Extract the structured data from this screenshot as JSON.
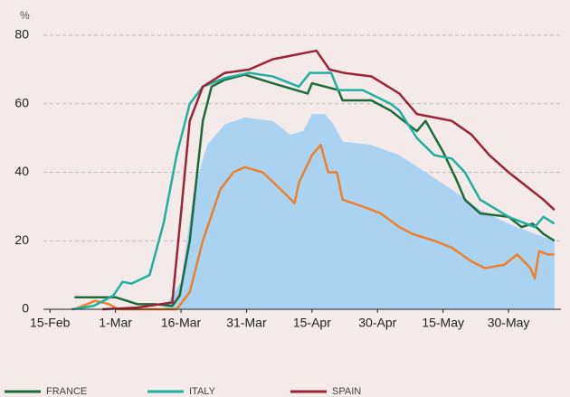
{
  "chart_data": {
    "type": "line",
    "ylabel": "%",
    "xlim": [
      -1.5,
      117
    ],
    "ylim": [
      0,
      80
    ],
    "xticks": [
      {
        "value": 0,
        "label": "15-Feb"
      },
      {
        "value": 15,
        "label": "1-Mar"
      },
      {
        "value": 30,
        "label": "16-Mar"
      },
      {
        "value": 45,
        "label": "31-Mar"
      },
      {
        "value": 60,
        "label": "15-Apr"
      },
      {
        "value": 75,
        "label": "30-Apr"
      },
      {
        "value": 90,
        "label": "15-May"
      },
      {
        "value": 105,
        "label": "30-May"
      }
    ],
    "yticks": [
      0,
      20,
      40,
      60,
      80
    ],
    "grid": true,
    "legend": "bottom",
    "series": [
      {
        "kind": "area",
        "color": "#a9d3f0",
        "x": [
          26,
          30,
          33,
          36,
          40,
          44.6,
          51,
          55,
          58,
          60,
          63,
          64.9,
          67,
          73.6,
          80,
          86,
          92,
          98.5,
          105,
          111,
          115.5
        ],
        "values": [
          0,
          8,
          35,
          48,
          54,
          56,
          55,
          51,
          52,
          57,
          57,
          54,
          49,
          48,
          45,
          40,
          35,
          29,
          25,
          22,
          20
        ]
      },
      {
        "kind": "line",
        "color": "#f07f2a",
        "x": [
          5.6,
          10.4,
          13.5,
          15.6,
          29,
          32,
          35,
          39,
          42,
          44.6,
          48.7,
          52,
          56,
          57,
          60,
          62,
          63.7,
          65.7,
          67,
          71.6,
          75.7,
          80,
          83,
          88,
          92,
          96.5,
          99.6,
          104,
          107,
          110,
          111,
          112,
          114,
          115.5
        ],
        "values": [
          0,
          2.5,
          1.5,
          0,
          0,
          5,
          20,
          35,
          40,
          41.5,
          40,
          36,
          31,
          37,
          45,
          48,
          40,
          40,
          32,
          30,
          28,
          24,
          22,
          20,
          18,
          14,
          12,
          13,
          16,
          12,
          9,
          17,
          16,
          16
        ]
      },
      {
        "kind": "line",
        "name": "FRANCE",
        "color": "#1e6b3a",
        "x": [
          5.6,
          10,
          15,
          20,
          24,
          28,
          29.7,
          32,
          35,
          37,
          40,
          44.6,
          51,
          59,
          60,
          66,
          67,
          73.6,
          78,
          84,
          86,
          90,
          93,
          95,
          98.5,
          105,
          108,
          110.5,
          113,
          115.5
        ],
        "values": [
          3.5,
          3.5,
          3.5,
          1.5,
          1.5,
          1,
          4,
          20,
          55,
          65,
          67,
          68.5,
          66,
          63,
          66,
          64,
          61,
          61,
          58,
          52,
          55,
          46,
          38,
          32,
          28,
          27,
          24,
          25,
          22,
          20
        ]
      },
      {
        "kind": "line",
        "name": "ITALY",
        "color": "#20b0a0",
        "x": [
          5,
          10,
          14.5,
          16.6,
          18.7,
          22.8,
          26,
          29,
          32,
          35,
          40,
          45.6,
          51,
          57,
          59.5,
          64.4,
          66,
          71.6,
          78,
          80,
          84,
          88,
          92,
          95,
          98.5,
          105,
          109,
          111,
          113,
          115.5
        ],
        "values": [
          0,
          1,
          4,
          8,
          7.5,
          10,
          25,
          45,
          60,
          65,
          67.5,
          69,
          68,
          65,
          69,
          69,
          64,
          64,
          60,
          58,
          50,
          45,
          44,
          40,
          32,
          27,
          25,
          24,
          27,
          25
        ]
      },
      {
        "kind": "line",
        "name": "SPAIN",
        "color": "#9b2335",
        "x": [
          12,
          20,
          28,
          30,
          32,
          35,
          40,
          45.6,
          51,
          55,
          59,
          61,
          64,
          67.4,
          73.6,
          80,
          84,
          88,
          92,
          96.5,
          100.6,
          105,
          109,
          113,
          115.5
        ],
        "values": [
          0,
          0.5,
          2,
          28,
          55,
          65,
          69,
          70,
          73,
          74,
          75,
          75.5,
          70,
          69,
          68,
          63,
          57,
          56,
          55,
          51,
          45,
          40,
          36,
          32,
          29
        ]
      }
    ]
  }
}
